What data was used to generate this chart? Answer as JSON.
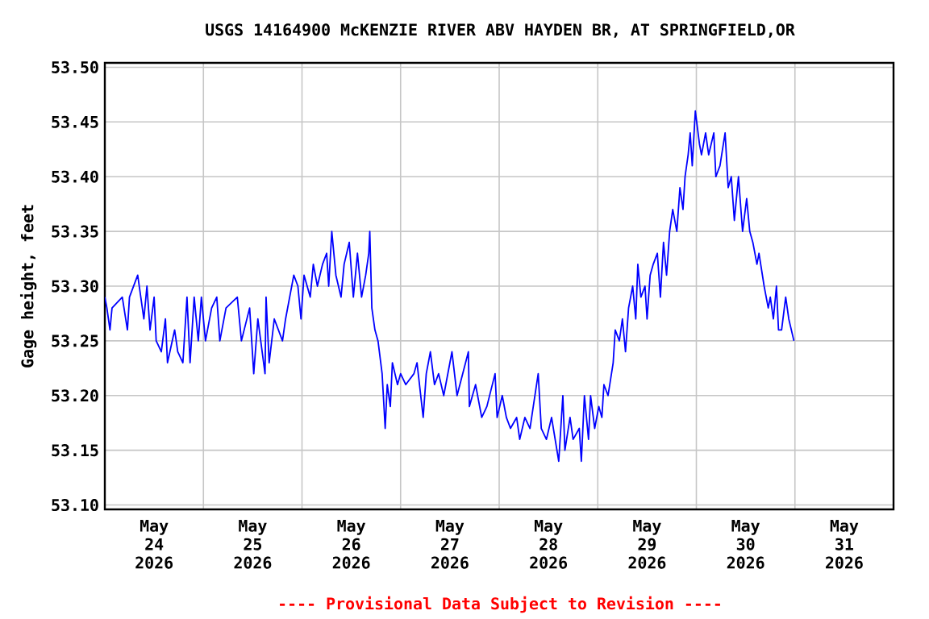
{
  "chart_data": {
    "type": "line",
    "title": "USGS 14164900 McKENZIE RIVER ABV HAYDEN BR, AT SPRINGFIELD,OR",
    "ylabel": "Gage height, feet",
    "annotations": [
      "---- Provisional Data Subject to Revision ----"
    ],
    "xlim": [
      "2026-05-24",
      "2026-06-01"
    ],
    "ylim": [
      53.096,
      53.504
    ],
    "xticks": [
      {
        "value": "2026-05-24",
        "label": null
      },
      {
        "value": "2026-05-24T12:00",
        "label": "May 24 2026"
      },
      {
        "value": "2026-05-25",
        "label": null
      },
      {
        "value": "2026-05-25T12:00",
        "label": "May 25 2026"
      },
      {
        "value": "2026-05-26",
        "label": null
      },
      {
        "value": "2026-05-26T12:00",
        "label": "May 26 2026"
      },
      {
        "value": "2026-05-27",
        "label": null
      },
      {
        "value": "2026-05-27T12:00",
        "label": "May 27 2026"
      },
      {
        "value": "2026-05-28",
        "label": null
      },
      {
        "value": "2026-05-28T12:00",
        "label": "May 28 2026"
      },
      {
        "value": "2026-05-29",
        "label": null
      },
      {
        "value": "2026-05-29T12:00",
        "label": "May 29 2026"
      },
      {
        "value": "2026-05-30",
        "label": null
      },
      {
        "value": "2026-05-30T12:00",
        "label": "May 30 2026"
      },
      {
        "value": "2026-05-31",
        "label": null
      },
      {
        "value": "2026-05-31T12:00",
        "label": "May 31 2026"
      },
      {
        "value": "2026-06-01",
        "label": null
      }
    ],
    "yticks": [
      {
        "value": 53.1,
        "label": "53.10"
      },
      {
        "value": 53.15,
        "label": "53.15"
      },
      {
        "value": 53.2,
        "label": "53.20"
      },
      {
        "value": 53.25,
        "label": "53.25"
      },
      {
        "value": 53.3,
        "label": "53.30"
      },
      {
        "value": 53.35,
        "label": "53.35"
      },
      {
        "value": 53.4,
        "label": "53.40"
      },
      {
        "value": 53.45,
        "label": "53.45"
      },
      {
        "value": 53.5,
        "label": "53.50"
      }
    ],
    "grid": true,
    "marker": "none",
    "line_style": "solid",
    "x": [
      "2026-05-24T00:00",
      "2026-05-24T00:30",
      "2026-05-24T01:15",
      "2026-05-24T01:45",
      "2026-05-24T04:15",
      "2026-05-24T05:30",
      "2026-05-24T06:00",
      "2026-05-24T08:00",
      "2026-05-24T09:30",
      "2026-05-24T10:15",
      "2026-05-24T11:00",
      "2026-05-24T12:00",
      "2026-05-24T12:30",
      "2026-05-24T13:45",
      "2026-05-24T14:45",
      "2026-05-24T15:15",
      "2026-05-24T17:00",
      "2026-05-24T17:45",
      "2026-05-24T19:00",
      "2026-05-24T20:00",
      "2026-05-24T20:45",
      "2026-05-24T21:45",
      "2026-05-24T22:45",
      "2026-05-24T23:30",
      "2026-05-25T00:30",
      "2026-05-25T02:00",
      "2026-05-25T03:15",
      "2026-05-25T04:00",
      "2026-05-25T05:30",
      "2026-05-25T08:15",
      "2026-05-25T09:15",
      "2026-05-25T11:15",
      "2026-05-25T12:15",
      "2026-05-25T13:15",
      "2026-05-25T15:00",
      "2026-05-25T15:15",
      "2026-05-25T16:00",
      "2026-05-25T17:15",
      "2026-05-25T19:15",
      "2026-05-25T20:00",
      "2026-05-25T21:00",
      "2026-05-25T22:00",
      "2026-05-25T23:00",
      "2026-05-25T23:45",
      "2026-05-26T00:30",
      "2026-05-26T02:00",
      "2026-05-26T02:45",
      "2026-05-26T03:45",
      "2026-05-26T05:00",
      "2026-05-26T06:00",
      "2026-05-26T06:30",
      "2026-05-26T07:15",
      "2026-05-26T08:15",
      "2026-05-26T09:30",
      "2026-05-26T10:15",
      "2026-05-26T11:30",
      "2026-05-26T12:30",
      "2026-05-26T13:30",
      "2026-05-26T14:30",
      "2026-05-26T15:30",
      "2026-05-26T16:15",
      "2026-05-26T16:30",
      "2026-05-26T17:00",
      "2026-05-26T17:45",
      "2026-05-26T18:30",
      "2026-05-26T19:30",
      "2026-05-26T20:15",
      "2026-05-26T20:45",
      "2026-05-26T21:30",
      "2026-05-26T22:00",
      "2026-05-26T23:15",
      "2026-05-27T00:00",
      "2026-05-27T01:15",
      "2026-05-27T03:15",
      "2026-05-27T04:00",
      "2026-05-27T05:30",
      "2026-05-27T06:15",
      "2026-05-27T07:15",
      "2026-05-27T08:15",
      "2026-05-27T09:15",
      "2026-05-27T10:30",
      "2026-05-27T12:30",
      "2026-05-27T13:45",
      "2026-05-27T16:30",
      "2026-05-27T16:45",
      "2026-05-27T18:15",
      "2026-05-27T19:45",
      "2026-05-27T21:00",
      "2026-05-27T23:00",
      "2026-05-27T23:30",
      "2026-05-28T00:45",
      "2026-05-28T01:45",
      "2026-05-28T02:45",
      "2026-05-28T04:15",
      "2026-05-28T05:00",
      "2026-05-28T06:15",
      "2026-05-28T07:30",
      "2026-05-28T09:30",
      "2026-05-28T10:15",
      "2026-05-28T11:30",
      "2026-05-28T12:45",
      "2026-05-28T14:30",
      "2026-05-28T15:30",
      "2026-05-28T16:00",
      "2026-05-28T17:15",
      "2026-05-28T18:00",
      "2026-05-28T19:30",
      "2026-05-28T20:00",
      "2026-05-28T20:45",
      "2026-05-28T21:45",
      "2026-05-28T22:15",
      "2026-05-28T23:15",
      "2026-05-29T00:15",
      "2026-05-29T01:00",
      "2026-05-29T01:30",
      "2026-05-29T02:30",
      "2026-05-29T03:45",
      "2026-05-29T04:15",
      "2026-05-29T05:15",
      "2026-05-29T06:00",
      "2026-05-29T06:45",
      "2026-05-29T07:30",
      "2026-05-29T08:30",
      "2026-05-29T09:15",
      "2026-05-29T09:45",
      "2026-05-29T10:30",
      "2026-05-29T11:30",
      "2026-05-29T12:00",
      "2026-05-29T12:45",
      "2026-05-29T13:30",
      "2026-05-29T14:30",
      "2026-05-29T15:15",
      "2026-05-29T16:00",
      "2026-05-29T16:45",
      "2026-05-29T17:30",
      "2026-05-29T18:15",
      "2026-05-29T19:15",
      "2026-05-29T20:00",
      "2026-05-29T20:45",
      "2026-05-29T21:15",
      "2026-05-29T22:00",
      "2026-05-29T22:30",
      "2026-05-29T23:00",
      "2026-05-29T23:45",
      "2026-05-30T00:45",
      "2026-05-30T01:15",
      "2026-05-30T02:15",
      "2026-05-30T03:00",
      "2026-05-30T04:15",
      "2026-05-30T04:45",
      "2026-05-30T05:45",
      "2026-05-30T07:00",
      "2026-05-30T07:45",
      "2026-05-30T08:30",
      "2026-05-30T09:15",
      "2026-05-30T10:15",
      "2026-05-30T11:15",
      "2026-05-30T12:15",
      "2026-05-30T13:00",
      "2026-05-30T13:45",
      "2026-05-30T14:45",
      "2026-05-30T15:15",
      "2026-05-30T16:30",
      "2026-05-30T17:30",
      "2026-05-30T18:00",
      "2026-05-30T18:45",
      "2026-05-30T19:30",
      "2026-05-30T20:00",
      "2026-05-30T20:45",
      "2026-05-30T21:45",
      "2026-05-30T22:30",
      "2026-05-30T23:45"
    ],
    "series": [
      {
        "color": "#0000ff",
        "values": [
          53.29,
          53.28,
          53.26,
          53.28,
          53.29,
          53.26,
          53.29,
          53.31,
          53.27,
          53.3,
          53.26,
          53.29,
          53.25,
          53.24,
          53.27,
          53.23,
          53.26,
          53.24,
          53.23,
          53.29,
          53.23,
          53.29,
          53.25,
          53.29,
          53.25,
          53.28,
          53.29,
          53.25,
          53.28,
          53.29,
          53.25,
          53.28,
          53.22,
          53.27,
          53.22,
          53.29,
          53.23,
          53.27,
          53.25,
          53.27,
          53.29,
          53.31,
          53.3,
          53.27,
          53.31,
          53.29,
          53.32,
          53.3,
          53.32,
          53.33,
          53.3,
          53.35,
          53.31,
          53.29,
          53.32,
          53.34,
          53.29,
          53.33,
          53.29,
          53.31,
          53.33,
          53.35,
          53.28,
          53.26,
          53.25,
          53.22,
          53.17,
          53.21,
          53.19,
          53.23,
          53.21,
          53.22,
          53.21,
          53.22,
          53.23,
          53.18,
          53.22,
          53.24,
          53.21,
          53.22,
          53.2,
          53.24,
          53.2,
          53.24,
          53.19,
          53.21,
          53.18,
          53.19,
          53.22,
          53.18,
          53.2,
          53.18,
          53.17,
          53.18,
          53.16,
          53.18,
          53.17,
          53.22,
          53.17,
          53.16,
          53.18,
          53.14,
          53.2,
          53.15,
          53.18,
          53.16,
          53.17,
          53.14,
          53.2,
          53.16,
          53.2,
          53.17,
          53.19,
          53.18,
          53.21,
          53.2,
          53.23,
          53.26,
          53.25,
          53.27,
          53.24,
          53.28,
          53.3,
          53.27,
          53.32,
          53.29,
          53.3,
          53.27,
          53.31,
          53.32,
          53.33,
          53.29,
          53.34,
          53.31,
          53.35,
          53.37,
          53.35,
          53.39,
          53.37,
          53.4,
          53.42,
          53.44,
          53.41,
          53.46,
          53.43,
          53.42,
          53.44,
          53.42,
          53.44,
          53.4,
          53.41,
          53.44,
          53.39,
          53.4,
          53.36,
          53.4,
          53.35,
          53.38,
          53.35,
          53.34,
          53.32,
          53.33,
          53.3,
          53.28,
          53.29,
          53.27,
          53.3,
          53.26,
          53.26,
          53.29,
          53.27,
          53.25
        ]
      }
    ]
  }
}
